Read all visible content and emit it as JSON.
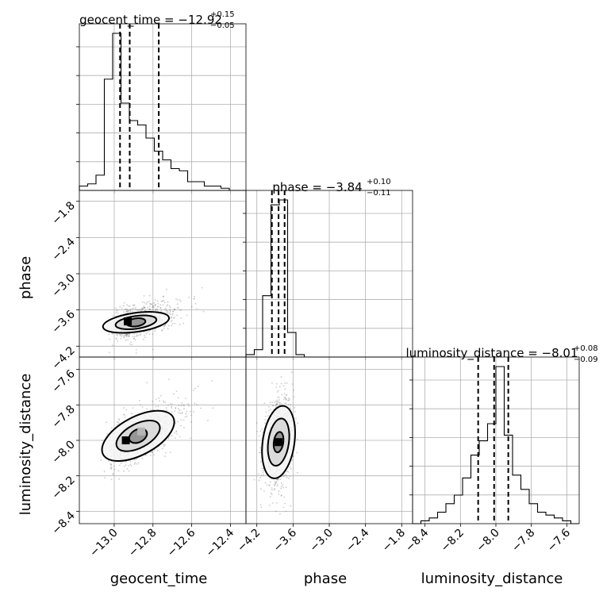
{
  "chart_data": {
    "type": "corner",
    "parameters": [
      "geocent_time",
      "phase",
      "luminosity_distance"
    ],
    "axis_labels": {
      "geocent_time": "geocent_time",
      "phase": "phase",
      "luminosity_distance": "luminosity_distance"
    },
    "ranges": {
      "geocent_time": [
        -13.18,
        -12.32
      ],
      "phase": [
        -4.38,
        -1.62
      ],
      "luminosity_distance": [
        -8.47,
        -7.53
      ]
    },
    "ticks": {
      "geocent_time": [
        -13.0,
        -12.8,
        -12.6,
        -12.4
      ],
      "phase": [
        -4.2,
        -3.6,
        -3.0,
        -2.4,
        -1.8
      ],
      "luminosity_distance": [
        -8.4,
        -8.2,
        -8.0,
        -7.8,
        -7.6
      ]
    },
    "tick_labels": {
      "geocent_time": [
        "−13.0",
        "−12.8",
        "−12.6",
        "−12.4"
      ],
      "phase": [
        "−4.2",
        "−3.6",
        "−3.0",
        "−2.4",
        "−1.8"
      ],
      "luminosity_distance": [
        "−8.4",
        "−8.2",
        "−8.0",
        "−7.8",
        "−7.6"
      ]
    },
    "titles": {
      "geocent_time": {
        "prefix": "geocent_time = ",
        "median": "−12.92",
        "plus": "+0.15",
        "minus": "−0.05"
      },
      "phase": {
        "prefix": "phase = ",
        "median": "−3.84",
        "plus": "+0.10",
        "minus": "−0.11"
      },
      "luminosity_distance": {
        "prefix": "luminosity_distance = ",
        "median": "−8.01",
        "plus": "+0.08",
        "minus": "−0.09"
      }
    },
    "quantiles": {
      "geocent_time": [
        -12.97,
        -12.92,
        -12.77
      ],
      "phase": [
        -3.95,
        -3.84,
        -3.74
      ],
      "luminosity_distance": [
        -8.1,
        -8.01,
        -7.93
      ]
    },
    "histograms": {
      "geocent_time": {
        "edges": [
          -13.18,
          -13.137,
          -13.094,
          -13.051,
          -13.008,
          -12.965,
          -12.922,
          -12.879,
          -12.836,
          -12.793,
          -12.75,
          -12.707,
          -12.664,
          -12.621,
          -12.578,
          -12.535,
          -12.492,
          -12.449,
          -12.406,
          -12.363,
          -12.32
        ],
        "counts": [
          2,
          3,
          7,
          51,
          72,
          40,
          32,
          30,
          24,
          18,
          14,
          10,
          9,
          4,
          4,
          2,
          2,
          1,
          0,
          0
        ]
      },
      "phase": {
        "edges": [
          -4.38,
          -4.242,
          -4.104,
          -3.966,
          -3.828,
          -3.69,
          -3.552,
          -3.414,
          -3.276,
          -3.138,
          -3.0,
          -2.862,
          -2.724,
          -2.586,
          -2.448,
          -2.31,
          -2.172,
          -2.034,
          -1.896,
          -1.758,
          -1.62
        ],
        "counts": [
          1,
          3,
          25,
          62,
          64,
          10,
          1,
          0,
          0,
          0,
          0,
          0,
          0,
          0,
          0,
          0,
          0,
          0,
          0,
          0
        ]
      },
      "luminosity_distance": {
        "edges": [
          -8.47,
          -8.423,
          -8.376,
          -8.329,
          -8.282,
          -8.235,
          -8.188,
          -8.141,
          -8.094,
          -8.047,
          -8.0,
          -7.953,
          -7.906,
          -7.859,
          -7.812,
          -7.765,
          -7.718,
          -7.671,
          -7.624,
          -7.577,
          -7.53
        ],
        "counts": [
          0,
          1,
          2,
          4,
          7,
          10,
          16,
          24,
          29,
          35,
          55,
          31,
          17,
          12,
          7,
          4,
          3,
          2,
          1,
          0
        ]
      }
    },
    "pairs": [
      {
        "x": "geocent_time",
        "y": "phase",
        "center": [
          -12.92,
          -3.82
        ],
        "peak_cells": [
          [
            -12.93,
            -3.79
          ]
        ]
      },
      {
        "x": "geocent_time",
        "y": "luminosity_distance",
        "center": [
          -12.92,
          -8.0
        ],
        "peak_cells": [
          [
            -12.94,
            -8.0
          ],
          [
            -12.86,
            -7.95
          ]
        ]
      },
      {
        "x": "phase",
        "y": "luminosity_distance",
        "center": [
          -3.84,
          -8.01
        ],
        "peak_cells": [
          [
            -3.84,
            -8.01
          ]
        ]
      }
    ],
    "grid": true,
    "contour_levels": 3
  }
}
